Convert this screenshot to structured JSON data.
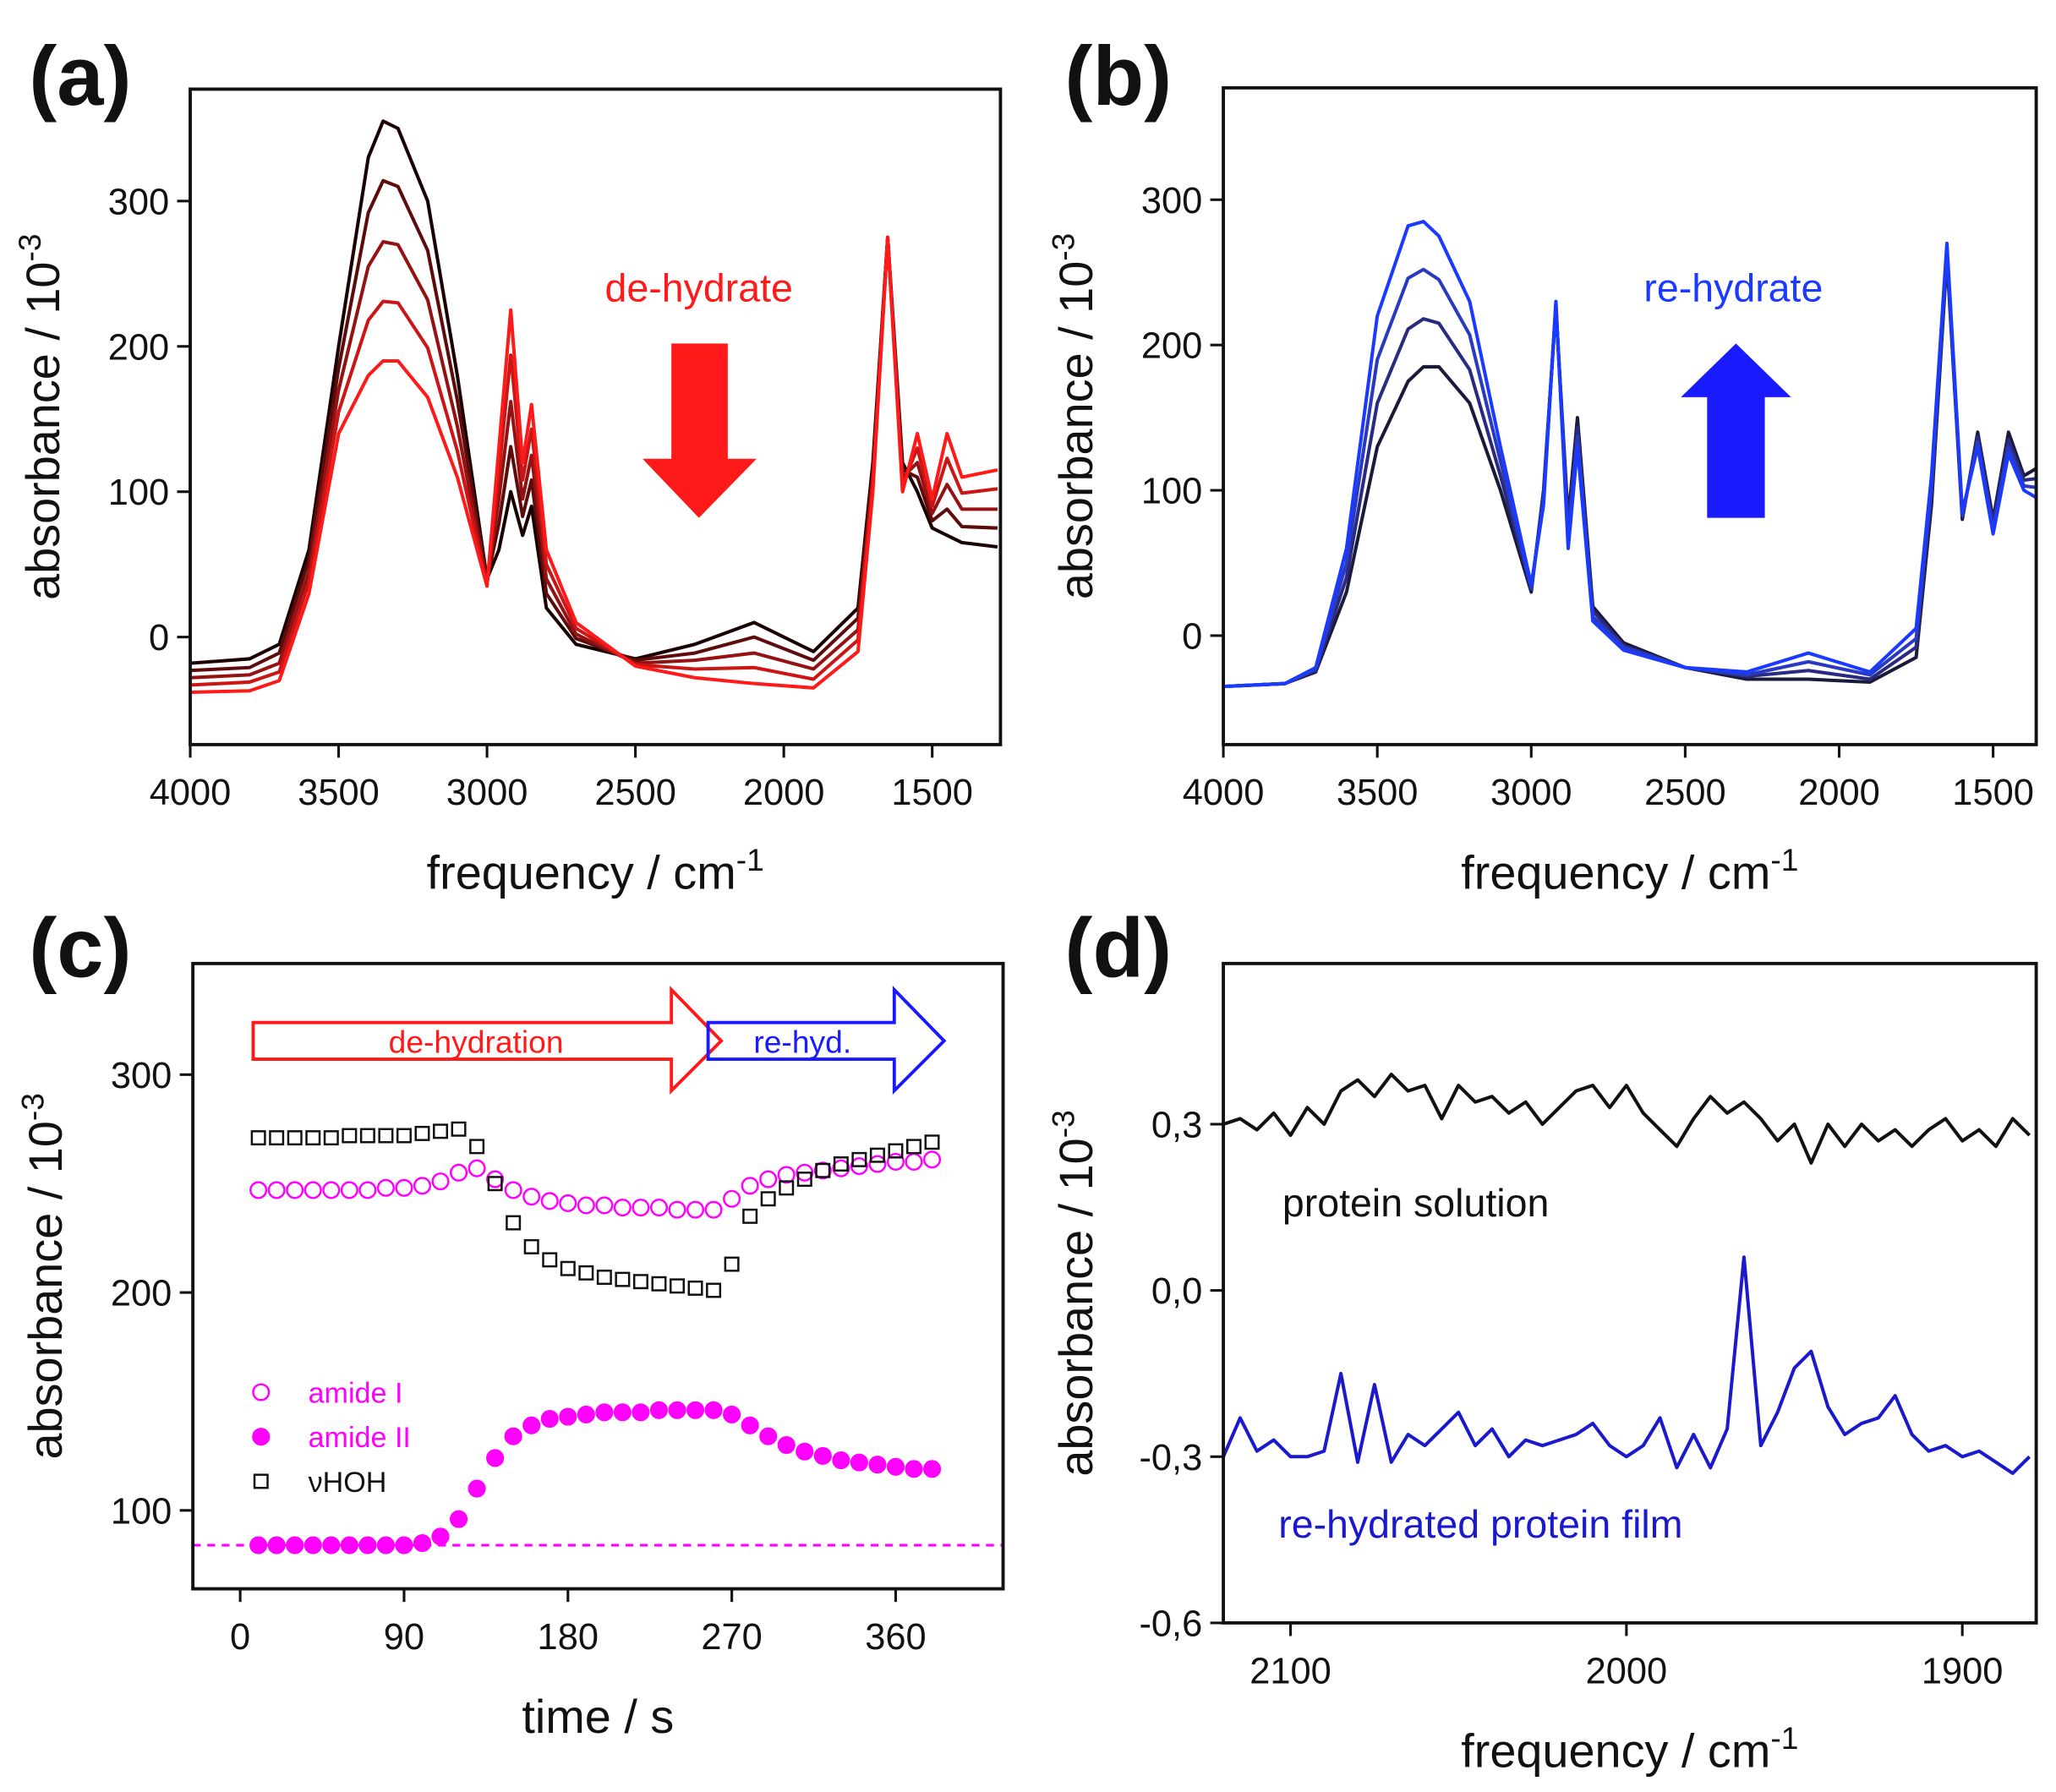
{
  "chart_data": [
    {
      "type": "line",
      "label": "(a)",
      "xlabel": "frequency / cm",
      "xlabel_sup": "-1",
      "ylabel": "absorbance / 10",
      "ylabel_sup": "-3",
      "annotations": [
        {
          "text": "de-hydrate",
          "color": "#ff1a1a"
        }
      ],
      "xlim": [
        4000,
        1270
      ],
      "xticks": [
        4000,
        3500,
        3000,
        2500,
        2000,
        1500
      ],
      "ylim": [
        -74,
        377
      ],
      "yticks": [
        0,
        100,
        200,
        300
      ],
      "x": [
        4000,
        3800,
        3700,
        3600,
        3500,
        3400,
        3350,
        3300,
        3200,
        3100,
        3000,
        2960,
        2920,
        2880,
        2850,
        2800,
        2700,
        2500,
        2300,
        2100,
        1900,
        1750,
        1700,
        1650,
        1600,
        1550,
        1500,
        1450,
        1400,
        1280
      ],
      "series": [
        {
          "color": "#1a0000",
          "values": [
            -18,
            -15,
            -5,
            60,
            200,
            330,
            355,
            350,
            300,
            180,
            40,
            60,
            100,
            70,
            90,
            20,
            -5,
            -15,
            -5,
            10,
            -10,
            20,
            120,
            275,
            120,
            100,
            75,
            70,
            65,
            62
          ]
        },
        {
          "color": "#5e0b0b",
          "values": [
            -23,
            -21,
            -11,
            53,
            185,
            292,
            314,
            310,
            266,
            163,
            39,
            78,
            131,
            83,
            108,
            30,
            -1,
            -16,
            -11,
            0,
            -16,
            13,
            115,
            275,
            115,
            110,
            80,
            88,
            76,
            75
          ]
        },
        {
          "color": "#941212",
          "values": [
            -28,
            -26,
            -18,
            45,
            170,
            255,
            272,
            270,
            232,
            145,
            37,
            95,
            162,
            95,
            125,
            40,
            2,
            -18,
            -16,
            -11,
            -22,
            5,
            110,
            275,
            110,
            120,
            85,
            105,
            88,
            88
          ]
        },
        {
          "color": "#cc1616",
          "values": [
            -33,
            -31,
            -24,
            38,
            155,
            218,
            231,
            230,
            199,
            128,
            36,
            113,
            194,
            108,
            143,
            50,
            6,
            -19,
            -22,
            -21,
            -29,
            -2,
            105,
            275,
            105,
            130,
            90,
            123,
            99,
            102
          ]
        },
        {
          "color": "#ff1a1a",
          "values": [
            -38,
            -37,
            -30,
            30,
            140,
            180,
            190,
            190,
            165,
            110,
            35,
            130,
            225,
            120,
            160,
            60,
            10,
            -20,
            -28,
            -32,
            -35,
            -10,
            100,
            275,
            100,
            140,
            95,
            140,
            110,
            115
          ]
        }
      ]
    },
    {
      "type": "line",
      "label": "(b)",
      "xlabel": "frequency / cm",
      "xlabel_sup": "-1",
      "ylabel": "absorbance / 10",
      "ylabel_sup": "-3",
      "annotations": [
        {
          "text": "re-hydrate",
          "color": "#1a3aff"
        }
      ],
      "xlim": [
        4000,
        1360
      ],
      "xticks": [
        4000,
        3500,
        3000,
        2500,
        2000,
        1500
      ],
      "ylim": [
        -75,
        377
      ],
      "yticks": [
        0,
        100,
        200,
        300
      ],
      "x": [
        4000,
        3800,
        3700,
        3600,
        3500,
        3400,
        3350,
        3300,
        3200,
        3100,
        3000,
        2960,
        2920,
        2880,
        2850,
        2800,
        2700,
        2500,
        2300,
        2100,
        1900,
        1750,
        1700,
        1650,
        1600,
        1550,
        1500,
        1450,
        1400,
        1360
      ],
      "series": [
        {
          "color": "#1a1a3a",
          "values": [
            -35,
            -33,
            -25,
            30,
            130,
            175,
            185,
            185,
            160,
            100,
            30,
            100,
            225,
            80,
            150,
            20,
            -5,
            -22,
            -30,
            -30,
            -32,
            -15,
            90,
            260,
            80,
            140,
            80,
            140,
            110,
            115
          ]
        },
        {
          "color": "#2a2a80",
          "values": [
            -35,
            -33,
            -24,
            40,
            160,
            211,
            218,
            215,
            183,
            110,
            32,
            97,
            227,
            73,
            143,
            17,
            -7,
            -22,
            -28,
            -24,
            -30,
            -8,
            97,
            263,
            82,
            137,
            77,
            135,
            107,
            108
          ]
        },
        {
          "color": "#2a3ac0",
          "values": [
            -35,
            -33,
            -23,
            50,
            190,
            246,
            252,
            245,
            207,
            120,
            33,
            93,
            228,
            67,
            137,
            13,
            -8,
            -22,
            -27,
            -18,
            -27,
            -2,
            103,
            267,
            83,
            133,
            73,
            130,
            103,
            102
          ]
        },
        {
          "color": "#1a3aff",
          "values": [
            -35,
            -33,
            -22,
            60,
            220,
            282,
            285,
            275,
            230,
            130,
            35,
            90,
            230,
            60,
            130,
            10,
            -10,
            -22,
            -25,
            -12,
            -25,
            5,
            110,
            270,
            85,
            130,
            70,
            125,
            100,
            95
          ]
        }
      ]
    },
    {
      "type": "scatter",
      "label": "(c)",
      "xlabel": "time / s",
      "ylabel": "absorbance / 10",
      "ylabel_sup": "-3",
      "annotations": [
        {
          "text": "de-hydration",
          "color": "#ff1a1a"
        },
        {
          "text": "re-hyd.",
          "color": "#1a1aff"
        }
      ],
      "xlim": [
        -26,
        419
      ],
      "xticks": [
        0,
        90,
        180,
        270,
        360
      ],
      "ylim": [
        64,
        351
      ],
      "yticks": [
        100,
        200,
        300
      ],
      "legend": "lower left",
      "hline": 84,
      "hline_color": "#ff00ff",
      "x": [
        10,
        20,
        30,
        40,
        50,
        60,
        70,
        80,
        90,
        100,
        110,
        120,
        130,
        140,
        150,
        160,
        170,
        180,
        190,
        200,
        210,
        220,
        230,
        240,
        250,
        260,
        270,
        280,
        290,
        300,
        310,
        320,
        330,
        340,
        350,
        360,
        370,
        380
      ],
      "series": [
        {
          "name": "amide I",
          "color": "#ff00ff",
          "marker": "circle-open",
          "values": [
            247,
            247,
            247,
            247,
            247,
            247,
            247,
            248,
            248,
            249,
            251,
            255,
            257,
            252,
            247,
            244,
            242,
            241,
            240,
            240,
            239,
            239,
            239,
            238,
            238,
            238,
            243,
            249,
            252,
            254,
            255,
            256,
            257,
            258,
            259,
            260,
            260,
            261
          ]
        },
        {
          "name": "amide II",
          "color": "#ff00ff",
          "marker": "circle",
          "values": [
            84,
            84,
            84,
            84,
            84,
            84,
            84,
            84,
            84,
            85,
            88,
            96,
            110,
            124,
            134,
            139,
            142,
            143,
            144,
            145,
            145,
            145,
            146,
            146,
            146,
            146,
            144,
            139,
            134,
            130,
            127,
            125,
            123,
            122,
            121,
            120,
            119,
            119
          ]
        },
        {
          "name": "νHOH",
          "color": "#111111",
          "marker": "square-open",
          "values": [
            271,
            271,
            271,
            271,
            271,
            272,
            272,
            272,
            272,
            273,
            274,
            275,
            267,
            250,
            232,
            221,
            215,
            211,
            209,
            207,
            206,
            205,
            204,
            203,
            202,
            201,
            213,
            235,
            243,
            248,
            252,
            256,
            259,
            261,
            263,
            265,
            267,
            269
          ]
        }
      ]
    },
    {
      "type": "line",
      "label": "(d)",
      "xlabel": "frequency / cm",
      "xlabel_sup": "-1",
      "ylabel": "absorbance / 10",
      "ylabel_sup": "-3",
      "xlim": [
        2120,
        1878
      ],
      "xticks": [
        2100,
        2000,
        1900
      ],
      "ylim": [
        -0.6,
        0.59
      ],
      "yticks": [
        {
          "value": 0.3,
          "label": "0,3"
        },
        {
          "value": 0,
          "label": "0,0"
        },
        {
          "value": -0.3,
          "label": "-0,3"
        },
        {
          "value": -0.6,
          "label": "-0,6"
        }
      ],
      "x": [
        2120,
        2115,
        2110,
        2105,
        2100,
        2095,
        2090,
        2085,
        2080,
        2075,
        2070,
        2065,
        2060,
        2055,
        2050,
        2045,
        2040,
        2035,
        2030,
        2025,
        2020,
        2015,
        2010,
        2005,
        2000,
        1995,
        1990,
        1985,
        1980,
        1975,
        1970,
        1965,
        1960,
        1955,
        1950,
        1945,
        1940,
        1935,
        1930,
        1925,
        1920,
        1915,
        1910,
        1905,
        1900,
        1895,
        1890,
        1885,
        1880
      ],
      "series": [
        {
          "name": "protein solution",
          "color": "#111111",
          "values": [
            0.3,
            0.31,
            0.29,
            0.32,
            0.28,
            0.33,
            0.3,
            0.36,
            0.38,
            0.35,
            0.39,
            0.36,
            0.37,
            0.31,
            0.37,
            0.34,
            0.35,
            0.32,
            0.34,
            0.3,
            0.33,
            0.36,
            0.37,
            0.33,
            0.37,
            0.32,
            0.29,
            0.26,
            0.31,
            0.35,
            0.32,
            0.34,
            0.31,
            0.27,
            0.3,
            0.23,
            0.3,
            0.26,
            0.3,
            0.27,
            0.29,
            0.26,
            0.29,
            0.31,
            0.27,
            0.29,
            0.26,
            0.31,
            0.28
          ]
        },
        {
          "name": "re-hydrated protein film",
          "color": "#1a1acc",
          "values": [
            -0.3,
            -0.23,
            -0.29,
            -0.27,
            -0.3,
            -0.3,
            -0.29,
            -0.15,
            -0.31,
            -0.17,
            -0.31,
            -0.26,
            -0.28,
            -0.25,
            -0.22,
            -0.28,
            -0.25,
            -0.3,
            -0.27,
            -0.28,
            -0.27,
            -0.26,
            -0.24,
            -0.28,
            -0.3,
            -0.28,
            -0.23,
            -0.32,
            -0.26,
            -0.32,
            -0.25,
            0.06,
            -0.28,
            -0.22,
            -0.14,
            -0.11,
            -0.21,
            -0.26,
            -0.24,
            -0.23,
            -0.19,
            -0.26,
            -0.29,
            -0.28,
            -0.3,
            -0.29,
            -0.31,
            -0.33,
            -0.3
          ]
        }
      ]
    }
  ]
}
